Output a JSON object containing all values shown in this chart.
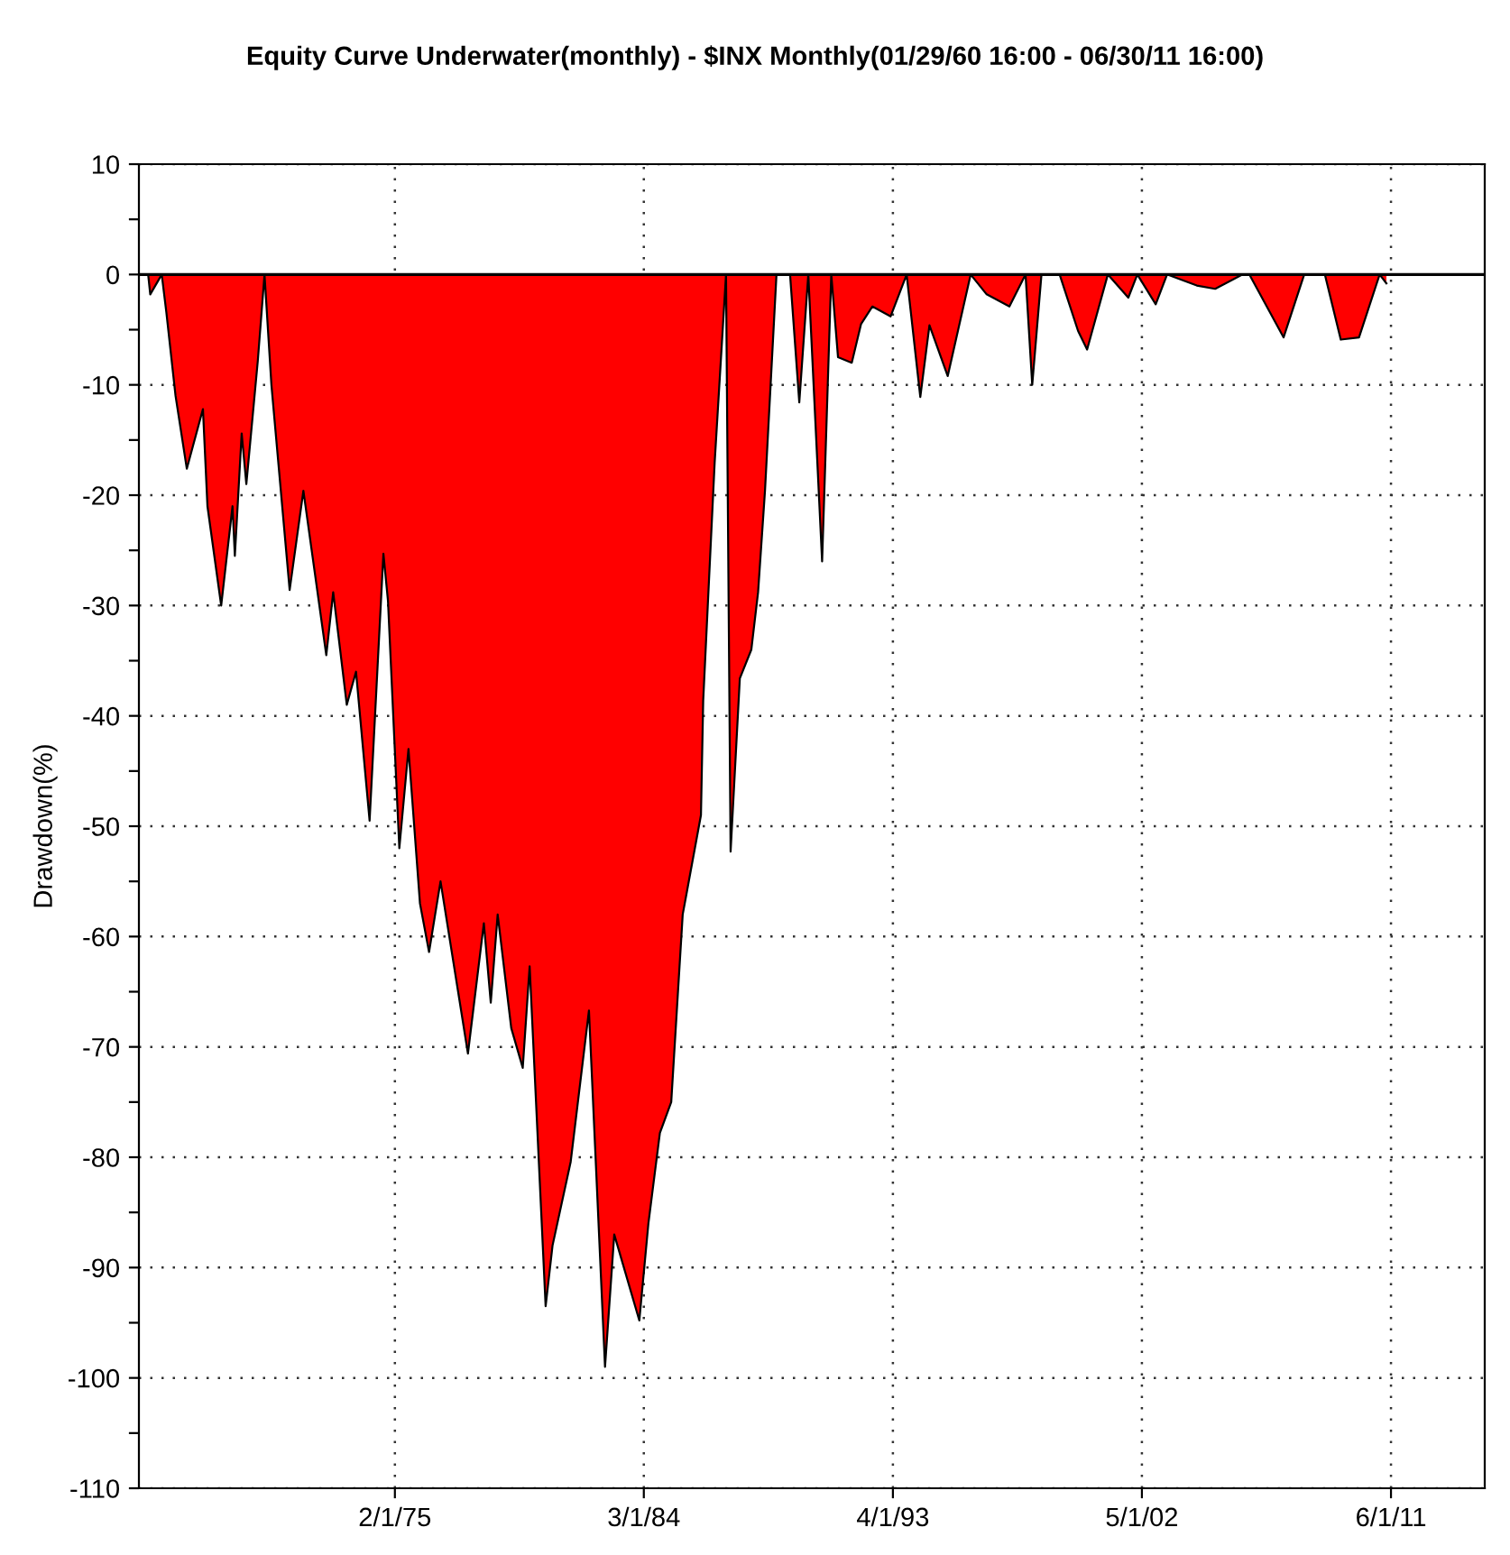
{
  "chart_data": {
    "type": "area",
    "title": "Equity Curve Underwater(monthly) - $INX Monthly(01/29/60 16:00 - 06/30/11 16:00)",
    "ylabel": "Drawdown(%)",
    "x": [
      "1966-02",
      "1966-03",
      "1966-08",
      "1966-10",
      "1967-02",
      "1967-07",
      "1968-02",
      "1968-04",
      "1968-10",
      "1969-03",
      "1969-04",
      "1969-07",
      "1969-09",
      "1970-02",
      "1970-05",
      "1970-08",
      "1971-04",
      "1971-10",
      "1972-08",
      "1972-11",
      "1973-05",
      "1973-09",
      "1974-03",
      "1974-09",
      "1974-11",
      "1975-04",
      "1975-08",
      "1976-01",
      "1976-05",
      "1976-10",
      "1977-10",
      "1978-05",
      "1978-08",
      "1978-11",
      "1979-05",
      "1979-10",
      "1980-01",
      "1980-08",
      "1980-11",
      "1981-07",
      "1982-03",
      "1982-10",
      "1983-02",
      "1984-01",
      "1984-05",
      "1984-10",
      "1985-03",
      "1985-08",
      "1986-04",
      "1986-05",
      "1986-10",
      "1987-03",
      "1987-05",
      "1987-09",
      "1988-02",
      "1988-05",
      "1988-08",
      "1989-01",
      "1989-07",
      "1989-11",
      "1990-03",
      "1990-09",
      "1991-01",
      "1991-04",
      "1991-10",
      "1992-02",
      "1992-07",
      "1993-03",
      "1993-10",
      "1994-04",
      "1994-08",
      "1995-04",
      "1996-02",
      "1996-09",
      "1997-07",
      "1998-02",
      "1998-05",
      "1998-09",
      "1999-05",
      "2000-01",
      "2000-05",
      "2001-02",
      "2001-11",
      "2002-03",
      "2002-11",
      "2003-04",
      "2004-05",
      "2005-01",
      "2006-01",
      "2006-04",
      "2007-07",
      "2008-04",
      "2009-01",
      "2009-08",
      "2010-04",
      "2011-01",
      "2011-04"
    ],
    "series": [
      {
        "color": "#ff0000",
        "values": [
          0,
          -1.8,
          0,
          -3.4,
          -11,
          -17.6,
          -12.2,
          -21,
          -30,
          -21,
          -25.5,
          -14.4,
          -19,
          -7.8,
          0,
          -10,
          -28.6,
          -19.6,
          -34.5,
          -28.8,
          -39,
          -36,
          -49.5,
          -25.3,
          -29.6,
          -52,
          -43,
          -57,
          -61.4,
          -55,
          -70.6,
          -58.8,
          -66,
          -58,
          -68.3,
          -71.9,
          -62.7,
          -93.5,
          -88,
          -80.4,
          -66.7,
          -99,
          -87,
          -94.8,
          -86,
          -77.8,
          -75,
          -58,
          -49,
          -38.6,
          -17,
          0,
          -52.3,
          -36.6,
          -34,
          -28.8,
          -19.6,
          0,
          0,
          -11.6,
          0,
          -26,
          0,
          -7.5,
          -8,
          -4.5,
          -2.9,
          -3.8,
          0,
          -11.1,
          -4.6,
          -9.2,
          0,
          -1.8,
          -2.9,
          0,
          -10,
          0,
          0,
          -5.1,
          -6.8,
          0,
          -2.1,
          0,
          -2.7,
          0,
          -1,
          -1.3,
          0,
          0,
          -5.7,
          0,
          0,
          -5.9,
          -5.7,
          0,
          -0.8
        ]
      }
    ],
    "xlim": [
      "1965-10",
      "2014-11"
    ],
    "xticks": [
      {
        "value": "1975-02-01",
        "label": "2/1/75"
      },
      {
        "value": "1984-03-01",
        "label": "3/1/84"
      },
      {
        "value": "1993-04-01",
        "label": "4/1/93"
      },
      {
        "value": "2002-05-01",
        "label": "5/1/02"
      },
      {
        "value": "2011-06-01",
        "label": "6/1/11"
      }
    ],
    "ylim": [
      -110,
      10
    ],
    "yticks": [
      -110,
      {
        "value": -105,
        "label": null
      },
      -100,
      {
        "value": -95,
        "label": null
      },
      -90,
      {
        "value": -85,
        "label": null
      },
      -80,
      {
        "value": -75,
        "label": null
      },
      -70,
      {
        "value": -65,
        "label": null
      },
      -60,
      {
        "value": -55,
        "label": null
      },
      -50,
      {
        "value": -45,
        "label": null
      },
      -40,
      {
        "value": -35,
        "label": null
      },
      -30,
      {
        "value": -25,
        "label": null
      },
      -20,
      {
        "value": -15,
        "label": null
      },
      -10,
      {
        "value": -5,
        "label": null
      },
      0,
      {
        "value": 5,
        "label": null
      },
      10
    ],
    "ref_lines": [
      {
        "axis": "y",
        "value": 0,
        "color": "#000000",
        "line_style": "solid"
      }
    ],
    "grid": true,
    "line_style": "solid"
  }
}
